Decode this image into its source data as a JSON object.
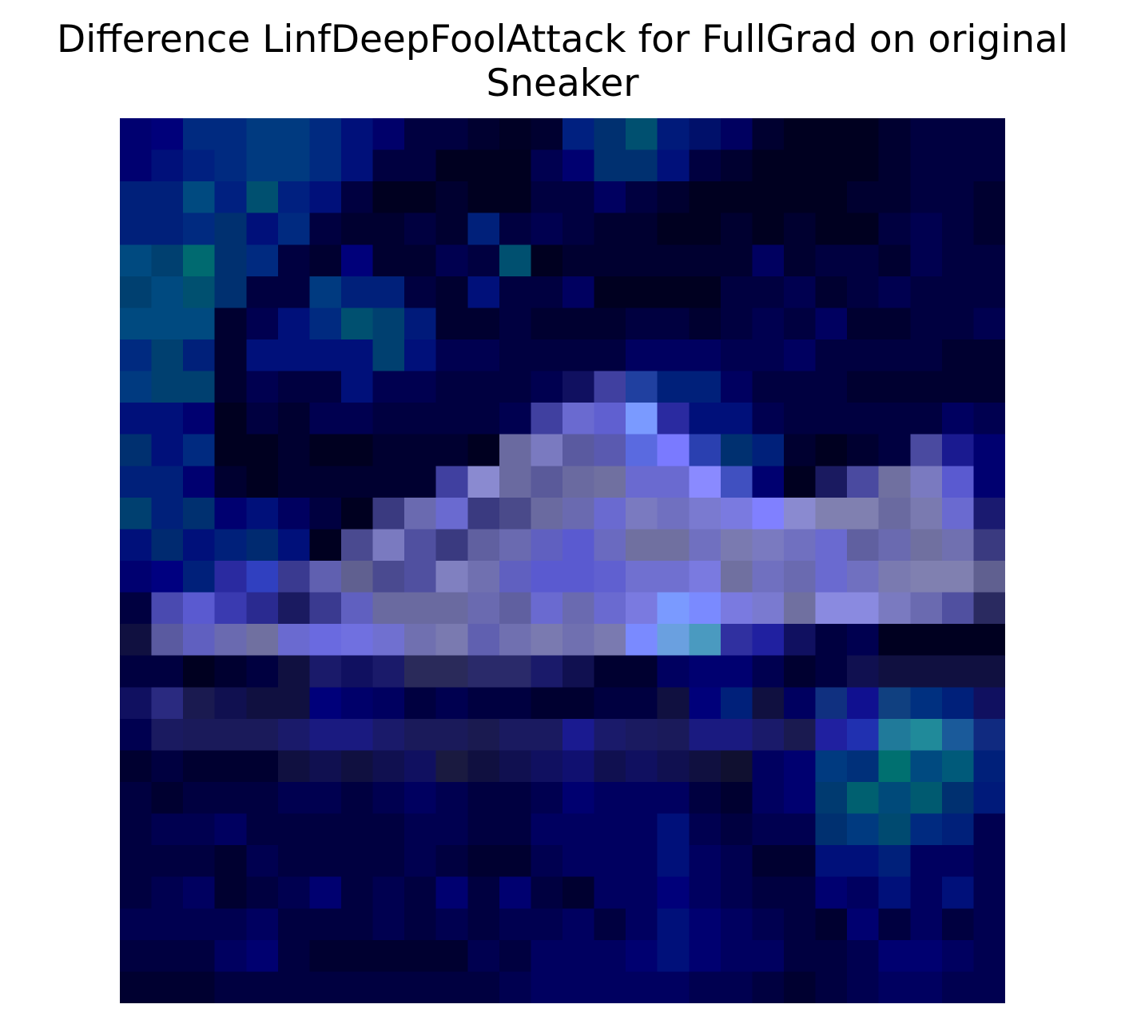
{
  "chart_data": {
    "type": "heatmap",
    "title_lines": [
      "Difference LinfDeepFoolAttack for FullGrad on original",
      "Sneaker"
    ],
    "rows": 28,
    "cols": 28,
    "grid": false,
    "axes_visible": false,
    "color_hint": "RGB difference image; dark navy background with bright lavender/blue sneaker silhouette and teal accents",
    "values": [
      [
        "#000070",
        "#00007a",
        "#002a80",
        "#002a80",
        "#003a80",
        "#003a80",
        "#002a80",
        "#00107a",
        "#00006a",
        "#000040",
        "#000040",
        "#000030",
        "#000025",
        "#000030",
        "#002080",
        "#003070",
        "#005070",
        "#001a7a",
        "#00106a",
        "#000060",
        "#000030",
        "#000020",
        "#000020",
        "#000020",
        "#000030",
        "#000040",
        "#000040",
        "#000040"
      ],
      [
        "#000070",
        "#00107a",
        "#002080",
        "#002a80",
        "#003a80",
        "#003a80",
        "#002a80",
        "#00107a",
        "#000040",
        "#000040",
        "#000020",
        "#000020",
        "#000020",
        "#000050",
        "#000070",
        "#003070",
        "#003070",
        "#00107a",
        "#000040",
        "#000030",
        "#000020",
        "#000020",
        "#000020",
        "#000020",
        "#000030",
        "#000040",
        "#000040",
        "#000040"
      ],
      [
        "#00207a",
        "#00207a",
        "#004a80",
        "#002080",
        "#005070",
        "#002080",
        "#00107a",
        "#000040",
        "#000020",
        "#000020",
        "#000030",
        "#000020",
        "#000020",
        "#000040",
        "#000040",
        "#000060",
        "#000040",
        "#000030",
        "#000020",
        "#000020",
        "#000020",
        "#000020",
        "#000020",
        "#000030",
        "#000030",
        "#000040",
        "#000040",
        "#000030"
      ],
      [
        "#00207a",
        "#00207a",
        "#002a80",
        "#003070",
        "#00107a",
        "#002a80",
        "#000040",
        "#000030",
        "#000030",
        "#000040",
        "#000030",
        "#00207a",
        "#000040",
        "#000050",
        "#000040",
        "#000030",
        "#000030",
        "#000020",
        "#000020",
        "#000030",
        "#000020",
        "#000030",
        "#000020",
        "#000020",
        "#000040",
        "#000050",
        "#000040",
        "#000030"
      ],
      [
        "#004a80",
        "#004070",
        "#006a70",
        "#003070",
        "#002a80",
        "#000040",
        "#000030",
        "#00007a",
        "#000030",
        "#000030",
        "#000050",
        "#000040",
        "#005070",
        "#000020",
        "#000030",
        "#000030",
        "#000030",
        "#000030",
        "#000030",
        "#000030",
        "#000060",
        "#000030",
        "#000040",
        "#000040",
        "#000030",
        "#000050",
        "#000040",
        "#000040"
      ],
      [
        "#004070",
        "#004a80",
        "#005070",
        "#003070",
        "#000040",
        "#000040",
        "#003a80",
        "#00207a",
        "#00207a",
        "#000040",
        "#000030",
        "#00107a",
        "#000040",
        "#000040",
        "#000060",
        "#000020",
        "#000020",
        "#000020",
        "#000020",
        "#000040",
        "#000040",
        "#000050",
        "#000030",
        "#000040",
        "#000050",
        "#000040",
        "#000040",
        "#000040"
      ],
      [
        "#004a80",
        "#004a80",
        "#004a80",
        "#000030",
        "#000050",
        "#00107a",
        "#002a80",
        "#005070",
        "#004070",
        "#001a7a",
        "#000030",
        "#000030",
        "#000040",
        "#000030",
        "#000030",
        "#000030",
        "#000040",
        "#000040",
        "#000030",
        "#000040",
        "#000050",
        "#000040",
        "#000060",
        "#000030",
        "#000030",
        "#000040",
        "#000040",
        "#000050"
      ],
      [
        "#002a80",
        "#004070",
        "#00207a",
        "#000030",
        "#00107a",
        "#00107a",
        "#00107a",
        "#00107a",
        "#004070",
        "#00107a",
        "#000050",
        "#000050",
        "#000040",
        "#000040",
        "#000040",
        "#000040",
        "#000060",
        "#000060",
        "#000060",
        "#000050",
        "#000050",
        "#000060",
        "#000040",
        "#000040",
        "#000040",
        "#000040",
        "#000030",
        "#000030"
      ],
      [
        "#003a80",
        "#004070",
        "#004070",
        "#000030",
        "#000050",
        "#000040",
        "#000040",
        "#00107a",
        "#000050",
        "#000050",
        "#000040",
        "#000040",
        "#000040",
        "#000050",
        "#101060",
        "#4040a0",
        "#2040a0",
        "#00207a",
        "#00207a",
        "#000060",
        "#000040",
        "#000040",
        "#000040",
        "#000030",
        "#000030",
        "#000030",
        "#000030",
        "#000030"
      ],
      [
        "#00107a",
        "#00107a",
        "#000070",
        "#000020",
        "#000040",
        "#000030",
        "#000050",
        "#000050",
        "#000040",
        "#000040",
        "#000040",
        "#000040",
        "#000050",
        "#4040a0",
        "#6a6ad0",
        "#6060d0",
        "#7a9aff",
        "#2a2aa0",
        "#00107a",
        "#00107a",
        "#000050",
        "#000040",
        "#000040",
        "#000040",
        "#000040",
        "#000040",
        "#000060",
        "#000050"
      ],
      [
        "#003070",
        "#00107a",
        "#002a80",
        "#000020",
        "#000020",
        "#000030",
        "#000020",
        "#000020",
        "#000030",
        "#000030",
        "#000030",
        "#000020",
        "#6a6aa0",
        "#7a7ac0",
        "#5a5aa0",
        "#5a5ab0",
        "#5a6ae0",
        "#7a7aff",
        "#2a40b0",
        "#003070",
        "#00207a",
        "#000030",
        "#000020",
        "#000030",
        "#000040",
        "#4a4aa0",
        "#1a1a90",
        "#000070"
      ],
      [
        "#00207a",
        "#00207a",
        "#000070",
        "#000030",
        "#000020",
        "#000030",
        "#000030",
        "#000030",
        "#000030",
        "#000030",
        "#4040a0",
        "#8a8ad0",
        "#6a6aa0",
        "#5a5a9a",
        "#6a6aa0",
        "#7070a0",
        "#6a6ad0",
        "#6a6ad0",
        "#8a8aff",
        "#4050c0",
        "#000070",
        "#000020",
        "#1a1a60",
        "#4a4aa0",
        "#7070a0",
        "#7a7ac0",
        "#5a5ad0",
        "#000070"
      ],
      [
        "#004070",
        "#00207a",
        "#003070",
        "#000070",
        "#00107a",
        "#000060",
        "#000040",
        "#000020",
        "#3a3a80",
        "#6a6ab0",
        "#6a6ad0",
        "#3a3a80",
        "#4a4a8a",
        "#6a6aa0",
        "#6a6ab0",
        "#6a6ad0",
        "#7a7ac0",
        "#7070c0",
        "#7a7ad0",
        "#7a7ae0",
        "#8080ff",
        "#8a8ad0",
        "#8080b0",
        "#8080b0",
        "#6a6aa0",
        "#7a7ab0",
        "#6a6ad0",
        "#1a1a70"
      ],
      [
        "#00107a",
        "#002a70",
        "#00107a",
        "#00207a",
        "#002a70",
        "#00107a",
        "#000020",
        "#4a4a90",
        "#7a7ac0",
        "#5050a0",
        "#3a3a80",
        "#6060a0",
        "#6a6ab0",
        "#6060c0",
        "#5a5ad0",
        "#6a6ac0",
        "#7070a0",
        "#7070a0",
        "#7070c0",
        "#7a7ab0",
        "#7a7ac0",
        "#7070c0",
        "#6a6ad0",
        "#6060a0",
        "#6a6ab0",
        "#7070a0",
        "#7070b0",
        "#3a3a80"
      ],
      [
        "#000070",
        "#000080",
        "#00207a",
        "#2a2aa0",
        "#3040c0",
        "#3a3a90",
        "#6060b0",
        "#606090",
        "#4a4a90",
        "#5050a0",
        "#8080c0",
        "#7070b0",
        "#6060c0",
        "#5a5ad0",
        "#5a5ad0",
        "#6060d0",
        "#7070d0",
        "#7070d0",
        "#7a7ae0",
        "#7070a0",
        "#7070c0",
        "#6a6ab0",
        "#6a6ad0",
        "#7070c0",
        "#7a7ab0",
        "#8080b0",
        "#8080b0",
        "#606090"
      ],
      [
        "#000040",
        "#4a4ab0",
        "#5a5ad0",
        "#3a3ab0",
        "#2a2a90",
        "#1a1a60",
        "#3a3a90",
        "#6060c0",
        "#6a6aa0",
        "#6a6aa0",
        "#6a6aa0",
        "#6a6ab0",
        "#6060a0",
        "#6a6ad0",
        "#6a6ab0",
        "#6a6ad0",
        "#7a7ae0",
        "#7a9aff",
        "#7a8aff",
        "#7a7ae0",
        "#7a7ad0",
        "#7070a0",
        "#8a8ae0",
        "#8a8ae0",
        "#7a7ac0",
        "#6a6ab0",
        "#5050a0",
        "#2a2a60"
      ],
      [
        "#101040",
        "#5a5aa0",
        "#6060c0",
        "#6a6ab0",
        "#7070a0",
        "#6a6ad0",
        "#6a6ae0",
        "#7070e0",
        "#7070d0",
        "#7070b0",
        "#7a7ab0",
        "#6060b0",
        "#7070b0",
        "#7a7ab0",
        "#7070b0",
        "#7a7ab0",
        "#7a8aff",
        "#6aa0e0",
        "#4a9ac0",
        "#3030a0",
        "#2020a0",
        "#101060",
        "#000040",
        "#000050",
        "#000020",
        "#000020",
        "#000020",
        "#000020"
      ],
      [
        "#000040",
        "#000040",
        "#000020",
        "#000030",
        "#000040",
        "#101040",
        "#1a1a6a",
        "#101060",
        "#1a1a6a",
        "#2a2a5a",
        "#2a2a5a",
        "#2a2a6a",
        "#2a2a6a",
        "#1a1a6a",
        "#101050",
        "#000030",
        "#000030",
        "#000060",
        "#000070",
        "#000070",
        "#000050",
        "#000030",
        "#000040",
        "#101050",
        "#101040",
        "#101040",
        "#101040",
        "#101040"
      ],
      [
        "#101060",
        "#2a2a80",
        "#1a1a50",
        "#101050",
        "#101040",
        "#101040",
        "#00007a",
        "#00006a",
        "#000060",
        "#000040",
        "#000050",
        "#000040",
        "#000040",
        "#000030",
        "#000030",
        "#000040",
        "#000040",
        "#101040",
        "#00007a",
        "#00207a",
        "#101040",
        "#000060",
        "#103080",
        "#101090",
        "#104080",
        "#003080",
        "#00207a",
        "#101060"
      ],
      [
        "#000050",
        "#1a1a60",
        "#1a1a5a",
        "#1a1a5a",
        "#1a1a5a",
        "#1a1a6a",
        "#1a1a80",
        "#1a1a80",
        "#1a1a6a",
        "#1a1a5a",
        "#1a1a5a",
        "#1a1a50",
        "#1a1a60",
        "#1a1a60",
        "#1a1a90",
        "#1a1a6a",
        "#1a1a60",
        "#1a1a5a",
        "#1a1a80",
        "#1a1a80",
        "#1a1a6a",
        "#1a1a50",
        "#2020a0",
        "#2030b0",
        "#207a9a",
        "#208a9a",
        "#1a5a9a",
        "#102a80"
      ],
      [
        "#000030",
        "#000040",
        "#000030",
        "#000030",
        "#000030",
        "#101040",
        "#101050",
        "#101040",
        "#101050",
        "#101060",
        "#1a1a40",
        "#101040",
        "#101050",
        "#101060",
        "#101070",
        "#101050",
        "#101060",
        "#101050",
        "#101040",
        "#101030",
        "#000060",
        "#000070",
        "#003a80",
        "#00307a",
        "#007070",
        "#004a80",
        "#005a7a",
        "#00207a"
      ],
      [
        "#000040",
        "#000030",
        "#000040",
        "#000040",
        "#000040",
        "#000050",
        "#000050",
        "#000040",
        "#000050",
        "#000060",
        "#000050",
        "#000040",
        "#000040",
        "#000050",
        "#000070",
        "#000060",
        "#000060",
        "#000060",
        "#000040",
        "#000030",
        "#000060",
        "#000070",
        "#003a70",
        "#006070",
        "#004a7a",
        "#005a70",
        "#003070",
        "#001a7a"
      ],
      [
        "#000040",
        "#000050",
        "#000050",
        "#000060",
        "#000040",
        "#000040",
        "#000040",
        "#000040",
        "#000040",
        "#000050",
        "#000050",
        "#000040",
        "#000040",
        "#000060",
        "#000060",
        "#000060",
        "#000060",
        "#00107a",
        "#000050",
        "#000040",
        "#000050",
        "#000050",
        "#003070",
        "#003a80",
        "#004a70",
        "#002a80",
        "#00207a",
        "#000050"
      ],
      [
        "#000040",
        "#000040",
        "#000040",
        "#000030",
        "#000050",
        "#000040",
        "#000040",
        "#000040",
        "#000040",
        "#000050",
        "#000040",
        "#000030",
        "#000030",
        "#000050",
        "#000060",
        "#000060",
        "#000060",
        "#00107a",
        "#000060",
        "#000050",
        "#000030",
        "#000030",
        "#00107a",
        "#00107a",
        "#00207a",
        "#000060",
        "#000060",
        "#000050"
      ],
      [
        "#000040",
        "#000050",
        "#000060",
        "#000030",
        "#000040",
        "#000050",
        "#000070",
        "#000040",
        "#000050",
        "#000040",
        "#000070",
        "#000040",
        "#000070",
        "#000040",
        "#000030",
        "#000060",
        "#000060",
        "#00007a",
        "#000060",
        "#000050",
        "#000040",
        "#000040",
        "#000070",
        "#000060",
        "#00107a",
        "#000060",
        "#00107a",
        "#000050"
      ],
      [
        "#000050",
        "#000050",
        "#000050",
        "#000050",
        "#000060",
        "#000040",
        "#000040",
        "#000040",
        "#000050",
        "#000040",
        "#000050",
        "#000040",
        "#000050",
        "#000050",
        "#000060",
        "#000040",
        "#000060",
        "#00107a",
        "#000070",
        "#000060",
        "#000050",
        "#000040",
        "#000030",
        "#000070",
        "#000040",
        "#000060",
        "#000040",
        "#000050"
      ],
      [
        "#000040",
        "#000040",
        "#000040",
        "#000060",
        "#000070",
        "#000040",
        "#000030",
        "#000030",
        "#000030",
        "#000030",
        "#000030",
        "#000050",
        "#000040",
        "#000060",
        "#000060",
        "#000060",
        "#000070",
        "#00107a",
        "#000070",
        "#000060",
        "#000060",
        "#000040",
        "#000040",
        "#000050",
        "#000070",
        "#000070",
        "#000060",
        "#000050"
      ],
      [
        "#000030",
        "#000030",
        "#000030",
        "#000040",
        "#000040",
        "#000040",
        "#000040",
        "#000040",
        "#000040",
        "#000040",
        "#000040",
        "#000040",
        "#000050",
        "#000060",
        "#000060",
        "#000060",
        "#000060",
        "#000060",
        "#000050",
        "#000050",
        "#000040",
        "#000030",
        "#000040",
        "#000050",
        "#000060",
        "#000060",
        "#000050",
        "#000050"
      ]
    ]
  }
}
